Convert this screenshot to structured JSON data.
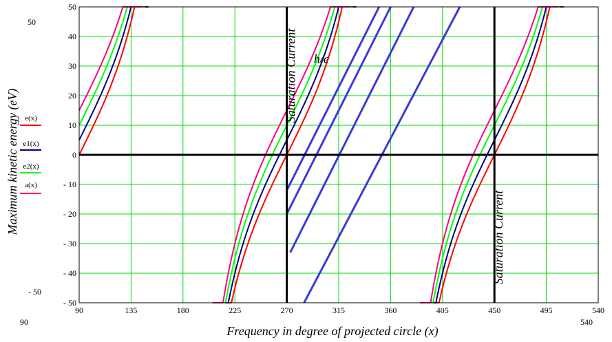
{
  "chart_data": {
    "type": "line",
    "xlabel": "Frequency in degree of projected circle (x)",
    "ylabel": "Maximum kinetic energy (eV)",
    "xlim": [
      90,
      540
    ],
    "ylim": [
      -50,
      50
    ],
    "corner_labels": {
      "top_left_y": "50",
      "bottom_left_y": "- 50",
      "bottom_left_x": "90",
      "bottom_right_x": "540"
    },
    "x_ticks": [
      {
        "value": 90,
        "label": "90"
      },
      {
        "value": 135,
        "label": "135"
      },
      {
        "value": 180,
        "label": "180"
      },
      {
        "value": 225,
        "label": "225"
      },
      {
        "value": 270,
        "label": "270"
      },
      {
        "value": 315,
        "label": "315"
      },
      {
        "value": 360,
        "label": "360"
      },
      {
        "value": 405,
        "label": "405"
      },
      {
        "value": 450,
        "label": "450"
      },
      {
        "value": 495,
        "label": "495"
      },
      {
        "value": 540,
        "label": "540"
      }
    ],
    "y_ticks": [
      {
        "value": 50,
        "label": "50"
      },
      {
        "value": 40,
        "label": "40"
      },
      {
        "value": 30,
        "label": "30"
      },
      {
        "value": 20,
        "label": "20"
      },
      {
        "value": 10,
        "label": "10"
      },
      {
        "value": 0,
        "label": "0"
      },
      {
        "value": -10,
        "label": "- 10"
      },
      {
        "value": -20,
        "label": "- 20"
      },
      {
        "value": -30,
        "label": "- 30"
      },
      {
        "value": -40,
        "label": "- 40"
      },
      {
        "value": -50,
        "label": "- 50"
      }
    ],
    "grid": true,
    "series": [
      {
        "name": "e(x)",
        "color": "#ff0000",
        "offset": 0
      },
      {
        "name": "e1(x)",
        "color": "#000080",
        "offset": 5
      },
      {
        "name": "e2(x)",
        "color": "#00ff00",
        "offset": 10
      },
      {
        "name": "a(x)",
        "color": "#ff0080",
        "offset": 15
      }
    ],
    "curve_model": {
      "a": 45,
      "pole_x": [
        90,
        270,
        450
      ]
    },
    "h_over_e_lines": {
      "color": "#3a3ad8",
      "segments": [
        {
          "x": [
            270,
            350
          ],
          "y": [
            -12,
            50
          ]
        },
        {
          "x": [
            270,
            360
          ],
          "y": [
            -20,
            50
          ]
        },
        {
          "x": [
            273,
            380
          ],
          "y": [
            -33,
            50
          ]
        },
        {
          "x": [
            285,
            420
          ],
          "y": [
            -50,
            50
          ]
        }
      ]
    },
    "vertical_lines": [
      {
        "x": 270,
        "label": "Saturation Current",
        "label_position": "upper"
      },
      {
        "x": 450,
        "label": "Saturation Current",
        "label_position": "lower"
      }
    ],
    "annotation": {
      "text": "h/e",
      "x": 300,
      "y": 31
    }
  }
}
